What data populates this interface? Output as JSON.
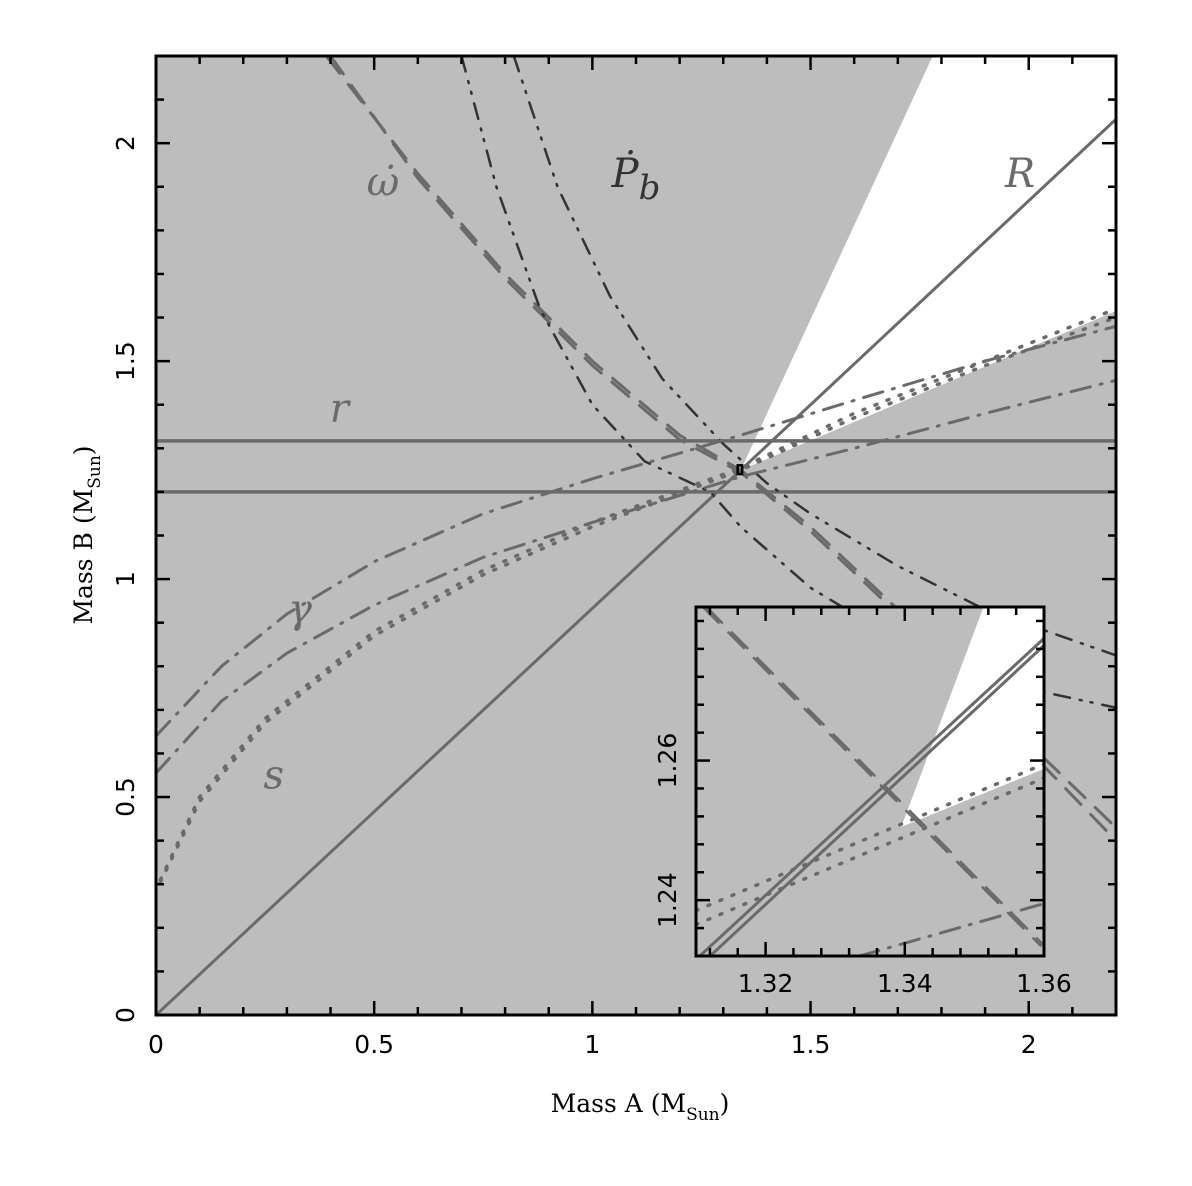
{
  "chart_data": {
    "type": "line",
    "title": "",
    "xlabel": "Mass A (M_Sun)",
    "xlabel_main": "Mass A (M",
    "xlabel_sub": "Sun",
    "xlabel_close": ")",
    "ylabel": "Mass B (M_Sun)",
    "ylabel_main": "Mass B (M",
    "ylabel_sub": "Sun",
    "ylabel_close": ")",
    "xlim": [
      0,
      2.2
    ],
    "ylim": [
      0,
      2.2
    ],
    "x_ticks": [
      0,
      0.5,
      1,
      1.5,
      2
    ],
    "x_tick_labels": [
      "0",
      "0.5",
      "1",
      "1.5",
      "2"
    ],
    "y_ticks": [
      0,
      0.5,
      1,
      1.5,
      2
    ],
    "y_tick_labels": [
      "0",
      "0.5",
      "1",
      "1.5",
      "2"
    ],
    "minor_tick_step": 0.1,
    "grid": false,
    "legend": "none",
    "colors": {
      "excluded_region": "#bdbdbd",
      "allowed_region": "#ffffff",
      "curve_grey": "#6a6a6a",
      "curve_dark": "#333333",
      "frame": "#000000"
    },
    "allowed_region_polygon": [
      [
        1.34,
        1.25
      ],
      [
        1.78,
        2.2
      ],
      [
        2.2,
        2.2
      ],
      [
        2.2,
        1.615
      ]
    ],
    "series": [
      {
        "name": "r (upper)",
        "label": "r",
        "style": "solid",
        "color": "#6a6a6a",
        "width": 3.5,
        "points": [
          [
            0,
            1.317
          ],
          [
            2.2,
            1.317
          ]
        ]
      },
      {
        "name": "r (lower)",
        "label": "r",
        "style": "solid",
        "color": "#6a6a6a",
        "width": 3.5,
        "points": [
          [
            0,
            1.2
          ],
          [
            2.2,
            1.2
          ]
        ]
      },
      {
        "name": "R",
        "label": "R",
        "style": "solid",
        "color": "#6a6a6a",
        "width": 3,
        "points": [
          [
            0,
            0
          ],
          [
            1.34,
            1.25
          ],
          [
            2.2,
            2.055
          ]
        ]
      },
      {
        "name": "omega-dot (upper)",
        "label": "ω̇",
        "style": "dashed",
        "color": "#6a6a6a",
        "width": 3,
        "points": [
          [
            0.39,
            2.2
          ],
          [
            0.6,
            1.93
          ],
          [
            0.8,
            1.7
          ],
          [
            1.0,
            1.5
          ],
          [
            1.2,
            1.33
          ],
          [
            1.34,
            1.25
          ],
          [
            1.5,
            1.12
          ],
          [
            1.7,
            0.93
          ],
          [
            1.9,
            0.72
          ],
          [
            2.2,
            0.43
          ]
        ]
      },
      {
        "name": "omega-dot (lower)",
        "label": "ω̇",
        "style": "dashed",
        "color": "#6a6a6a",
        "width": 3,
        "points": [
          [
            0.4,
            2.2
          ],
          [
            0.6,
            1.92
          ],
          [
            0.8,
            1.69
          ],
          [
            1.0,
            1.49
          ],
          [
            1.2,
            1.32
          ],
          [
            1.34,
            1.245
          ],
          [
            1.5,
            1.11
          ],
          [
            1.7,
            0.92
          ],
          [
            1.9,
            0.71
          ],
          [
            2.2,
            0.4
          ]
        ]
      },
      {
        "name": "Pb-dot (1)",
        "label": "Ṗb",
        "style": "dashdotdot",
        "color": "#333333",
        "width": 2.5,
        "points": [
          [
            0.7,
            2.2
          ],
          [
            0.78,
            1.9
          ],
          [
            0.88,
            1.62
          ],
          [
            1.0,
            1.4
          ],
          [
            1.12,
            1.27
          ],
          [
            1.27,
            1.2
          ],
          [
            1.34,
            1.12
          ],
          [
            1.5,
            0.98
          ],
          [
            1.7,
            0.86
          ],
          [
            1.9,
            0.77
          ],
          [
            2.2,
            0.705
          ]
        ]
      },
      {
        "name": "Pb-dot (2)",
        "label": "Ṗb",
        "style": "dashdotdot",
        "color": "#333333",
        "width": 2.5,
        "points": [
          [
            0.82,
            2.2
          ],
          [
            0.92,
            1.9
          ],
          [
            1.04,
            1.65
          ],
          [
            1.16,
            1.46
          ],
          [
            1.3,
            1.31
          ],
          [
            1.4,
            1.22
          ],
          [
            1.5,
            1.15
          ],
          [
            1.7,
            1.03
          ],
          [
            1.9,
            0.93
          ],
          [
            2.2,
            0.825
          ]
        ]
      },
      {
        "name": "gamma (upper)",
        "label": "γ",
        "style": "dashdot",
        "color": "#6a6a6a",
        "width": 3,
        "points": [
          [
            0,
            0.64
          ],
          [
            0.15,
            0.8
          ],
          [
            0.3,
            0.92
          ],
          [
            0.5,
            1.04
          ],
          [
            0.75,
            1.15
          ],
          [
            1.0,
            1.23
          ],
          [
            1.34,
            1.33
          ],
          [
            1.6,
            1.41
          ],
          [
            1.9,
            1.5
          ],
          [
            2.2,
            1.58
          ]
        ]
      },
      {
        "name": "gamma (lower)",
        "label": "γ",
        "style": "dashdot",
        "color": "#6a6a6a",
        "width": 3,
        "points": [
          [
            0,
            0.555
          ],
          [
            0.15,
            0.72
          ],
          [
            0.3,
            0.83
          ],
          [
            0.5,
            0.94
          ],
          [
            0.75,
            1.05
          ],
          [
            1.0,
            1.13
          ],
          [
            1.34,
            1.235
          ],
          [
            1.6,
            1.3
          ],
          [
            1.9,
            1.38
          ],
          [
            2.2,
            1.456
          ]
        ]
      },
      {
        "name": "s (upper)",
        "label": "s",
        "style": "dotted",
        "color": "#6a6a6a",
        "width": 3.5,
        "points": [
          [
            0.01,
            0.31
          ],
          [
            0.1,
            0.5
          ],
          [
            0.25,
            0.68
          ],
          [
            0.5,
            0.88
          ],
          [
            0.75,
            1.02
          ],
          [
            1.0,
            1.13
          ],
          [
            1.34,
            1.255
          ],
          [
            1.6,
            1.38
          ],
          [
            1.9,
            1.5
          ],
          [
            2.2,
            1.62
          ]
        ]
      },
      {
        "name": "s (lower)",
        "label": "s",
        "style": "dotted",
        "color": "#6a6a6a",
        "width": 3.5,
        "points": [
          [
            0.01,
            0.305
          ],
          [
            0.1,
            0.49
          ],
          [
            0.25,
            0.67
          ],
          [
            0.5,
            0.87
          ],
          [
            0.75,
            1.01
          ],
          [
            1.0,
            1.12
          ],
          [
            1.34,
            1.25
          ],
          [
            1.6,
            1.37
          ],
          [
            1.9,
            1.49
          ],
          [
            2.2,
            1.6
          ]
        ]
      }
    ],
    "annotations": [
      {
        "text": "ω̇",
        "x": 0.52,
        "y": 1.88,
        "color": "#6a6a6a"
      },
      {
        "text": "Ṗ",
        "sub": "b",
        "x": 1.1,
        "y": 1.9,
        "color": "#333333"
      },
      {
        "text": "R",
        "x": 1.98,
        "y": 1.9,
        "color": "#6a6a6a"
      },
      {
        "text": "r",
        "x": 0.42,
        "y": 1.36,
        "color": "#6a6a6a"
      },
      {
        "text": "γ",
        "x": 0.33,
        "y": 0.9,
        "color": "#6a6a6a"
      },
      {
        "text": "s",
        "x": 0.27,
        "y": 0.52,
        "color": "#6a6a6a"
      }
    ],
    "zoom_box": {
      "xlim": [
        1.333,
        1.343
      ],
      "ylim": [
        1.241,
        1.261
      ]
    },
    "inset": {
      "type": "line",
      "xlim": [
        1.31,
        1.36
      ],
      "ylim": [
        1.232,
        1.282
      ],
      "x_ticks": [
        1.32,
        1.34,
        1.36
      ],
      "x_tick_labels": [
        "1.32",
        "1.34",
        "1.36"
      ],
      "y_ticks": [
        1.24,
        1.26
      ],
      "y_tick_labels": [
        "1.24",
        "1.26"
      ],
      "minor_tick_step": 0.004,
      "allowed_region_polygon": [
        [
          1.3395,
          1.2505
        ],
        [
          1.3513,
          1.282
        ],
        [
          1.36,
          1.282
        ],
        [
          1.36,
          1.2588
        ]
      ],
      "series": [
        {
          "name": "R (upper)",
          "style": "solid",
          "color": "#6a6a6a",
          "width": 3,
          "points": [
            [
              1.31,
              1.2315
            ],
            [
              1.36,
              1.2775
            ]
          ]
        },
        {
          "name": "R (lower)",
          "style": "solid",
          "color": "#6a6a6a",
          "width": 3,
          "points": [
            [
              1.3115,
              1.2315
            ],
            [
              1.36,
              1.2765
            ]
          ]
        },
        {
          "name": "omega-dot (upper)",
          "style": "dashed",
          "color": "#6a6a6a",
          "width": 2.5,
          "points": [
            [
              1.3115,
              1.282
            ],
            [
              1.36,
              1.2335
            ]
          ]
        },
        {
          "name": "omega-dot (lower)",
          "style": "dashed",
          "color": "#6a6a6a",
          "width": 2.5,
          "points": [
            [
              1.311,
              1.282
            ],
            [
              1.3595,
              1.2335
            ]
          ]
        },
        {
          "name": "s (upper)",
          "style": "dotted",
          "color": "#6a6a6a",
          "width": 3.5,
          "points": [
            [
              1.31,
              1.2385
            ],
            [
              1.36,
              1.2595
            ]
          ]
        },
        {
          "name": "s (lower)",
          "style": "dotted",
          "color": "#6a6a6a",
          "width": 3.5,
          "points": [
            [
              1.31,
              1.2365
            ],
            [
              1.36,
              1.2575
            ]
          ]
        },
        {
          "name": "gamma",
          "style": "dashdot",
          "color": "#6a6a6a",
          "width": 3,
          "points": [
            [
              1.3335,
              1.232
            ],
            [
              1.36,
              1.2395
            ]
          ]
        }
      ]
    }
  }
}
